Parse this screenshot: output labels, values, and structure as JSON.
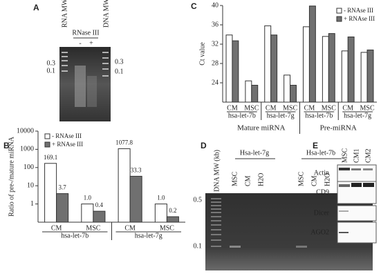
{
  "chart_data": [
    {
      "type": "bar",
      "panel": "B",
      "ylabel": "Ratio of pre-/mature miRNA",
      "log_scale": true,
      "categories": [
        "CM",
        "MSC",
        "CM",
        "MSC"
      ],
      "groups": [
        "hsa-let-7b",
        "hsa-let-7g"
      ],
      "series": [
        {
          "name": "- RNAse III",
          "color": "#ffffff",
          "values": [
            169.1,
            1.0,
            1077.8,
            1.0
          ],
          "value_labels": [
            "169.1",
            "1.0",
            "1077.8",
            "1.0"
          ]
        },
        {
          "name": "+ RNAse III",
          "color": "#707070",
          "values": [
            3.7,
            0.4,
            33.3,
            0.2
          ],
          "value_labels": [
            "3.7",
            "0.4",
            "33.3",
            "0.2"
          ]
        }
      ],
      "ylim": [
        0.1,
        10000
      ],
      "yticks": [
        1,
        10,
        100,
        1000,
        10000
      ],
      "legend": "upper-left"
    },
    {
      "type": "bar",
      "panel": "C",
      "ylabel": "Ct value",
      "log_scale": false,
      "categories": [
        "CM",
        "MSC",
        "CM",
        "MSC",
        "CM",
        "MSC",
        "CM",
        "MSC"
      ],
      "groups": [
        "hsa-let-7b",
        "hsa-let-7g",
        "hsa-let-7b",
        "hsa-let-7g"
      ],
      "supergroups": [
        "Mature miRNA",
        "Pre-miRNA"
      ],
      "series": [
        {
          "name": "- RNAse III",
          "color": "#ffffff",
          "values": [
            33.9,
            24.4,
            35.8,
            25.6,
            35.6,
            33.6,
            30.6,
            30.3
          ]
        },
        {
          "name": "+ RNAse III",
          "color": "#707070",
          "values": [
            32.7,
            23.5,
            33.9,
            23.5,
            39.9,
            34.2,
            33.5,
            30.8
          ]
        }
      ],
      "ylim": [
        20,
        40
      ],
      "yticks": [
        24,
        28,
        32,
        36,
        40
      ],
      "legend": "upper-right"
    }
  ],
  "gel_a": {
    "label": "A",
    "left_lane": "RNA MW (kb)",
    "right_lane": "DNA MW (kb)",
    "treatment": "RNase III",
    "lanes": [
      "-",
      "+"
    ],
    "markers_left": [
      "0.3",
      "0.1"
    ],
    "markers_right": [
      "0.3",
      "0.1"
    ]
  },
  "gel_d": {
    "label": "D",
    "ladder": "DNA MW (kb)",
    "targets": [
      "Hsa-let-7g",
      "Hsa-let-7b"
    ],
    "lanes": [
      "MSC",
      "CM",
      "H2O",
      "MSC",
      "CM",
      "H2O"
    ],
    "markers": [
      "0.5",
      "0.1"
    ]
  },
  "blot_e": {
    "label": "E",
    "lanes": [
      "MSC",
      "CM1",
      "CM2"
    ],
    "rows": [
      "Actin",
      "CD9",
      "Dicer",
      "AGO2"
    ]
  }
}
